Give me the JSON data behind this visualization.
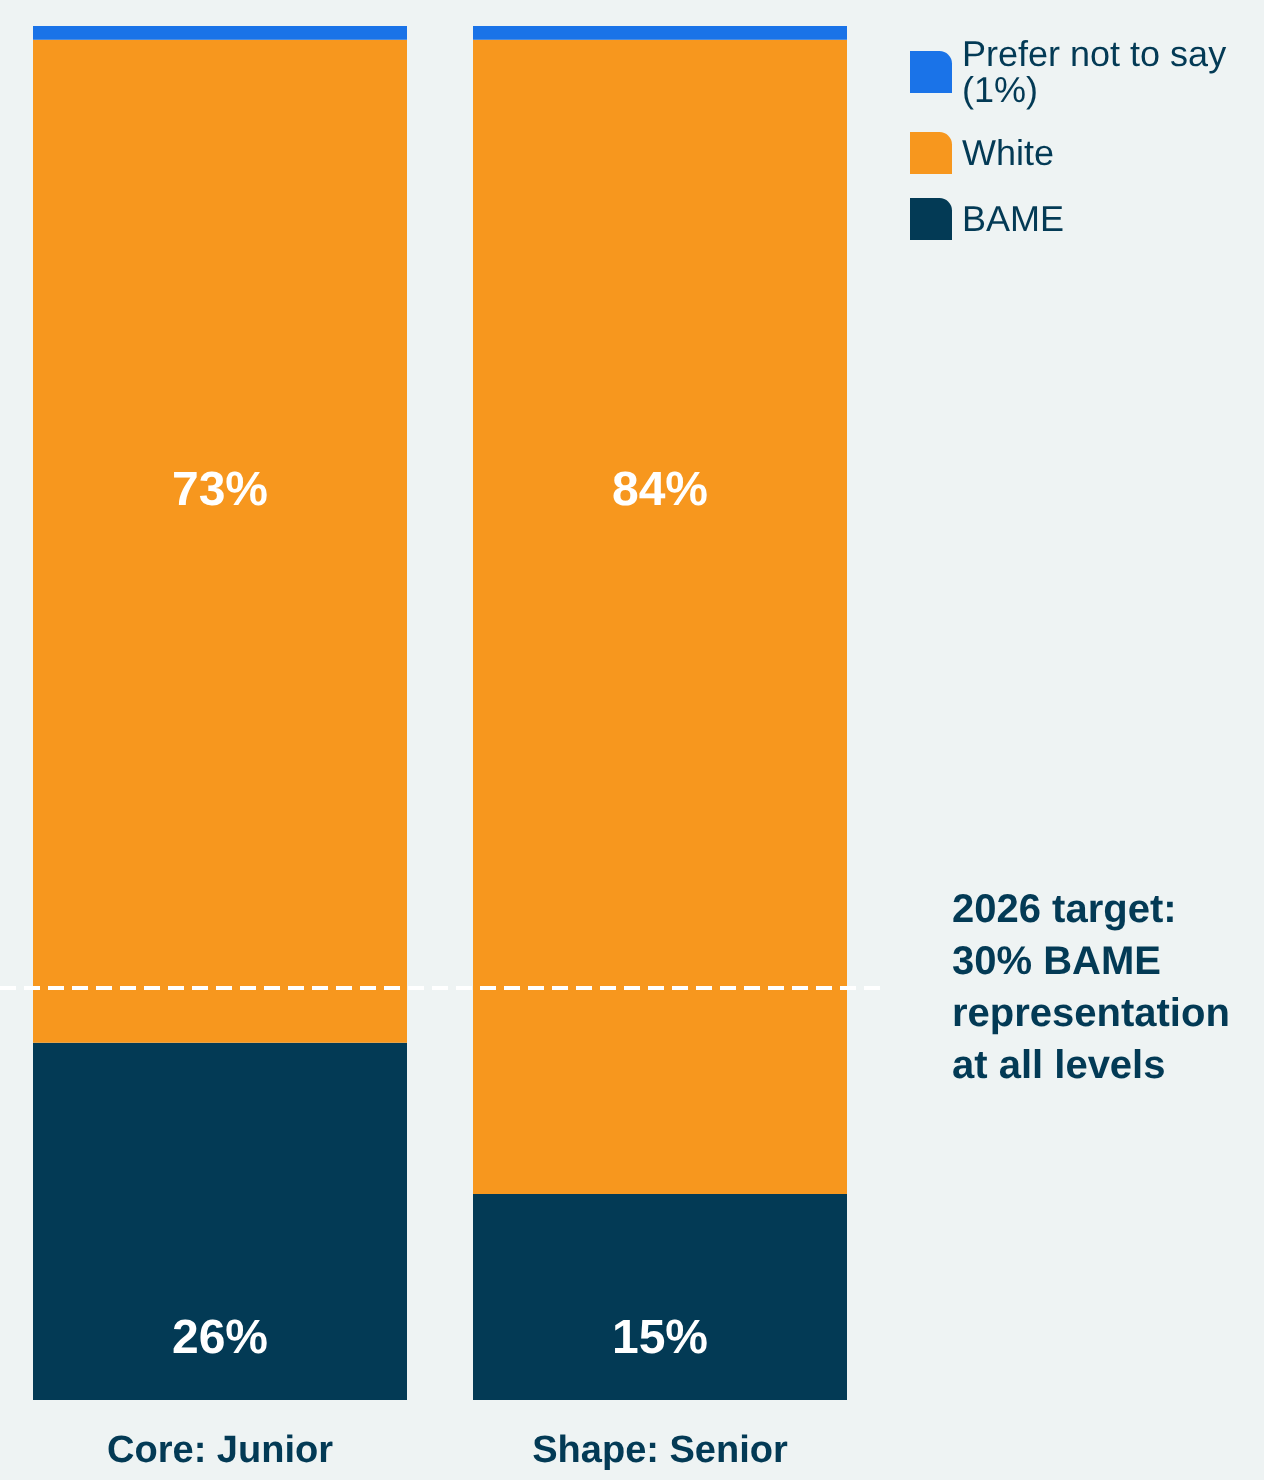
{
  "chart_data": {
    "type": "bar",
    "stacked": true,
    "categories": [
      "Core: Junior",
      "Shape: Senior"
    ],
    "series": [
      {
        "name": "BAME",
        "color": "#033a55",
        "values": [
          26,
          15
        ],
        "value_labels": [
          "26%",
          "15%"
        ]
      },
      {
        "name": "White",
        "color": "#f7971e",
        "values": [
          73,
          84
        ],
        "value_labels": [
          "73%",
          "84%"
        ]
      },
      {
        "name": "Prefer not to say (1%)",
        "color": "#1a73e8",
        "values": [
          1,
          1
        ],
        "value_labels": [
          null,
          null
        ]
      }
    ],
    "ylim": [
      0,
      100
    ],
    "tick_labels": "x",
    "legend": "top right",
    "ref_lines": [
      {
        "axis": "y",
        "value": 30,
        "label": "2026 target: 30% BAME representation at all levels",
        "color": "#ffffff",
        "line_style": "dashed"
      }
    ]
  }
}
